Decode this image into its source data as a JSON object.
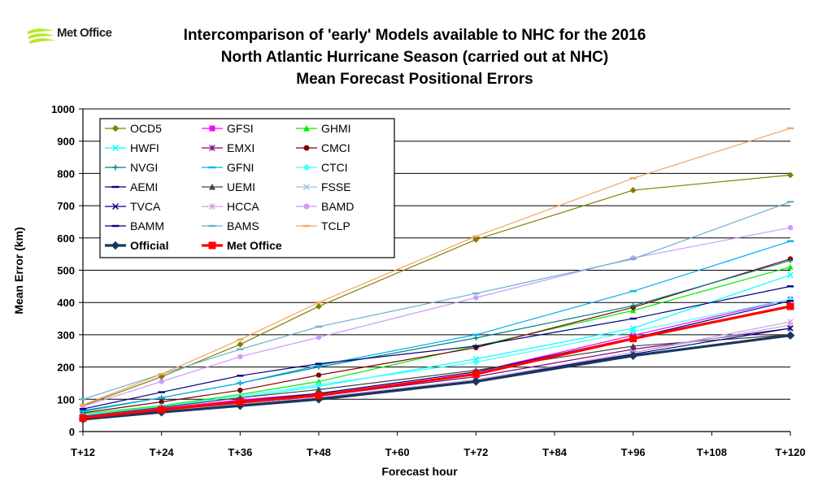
{
  "logo": {
    "text": "Met Office",
    "color": "#b8e830"
  },
  "title_lines": [
    "Intercomparison of 'early' Models available to NHC for the 2016",
    "North Atlantic Hurricane Season (carried out at NHC)",
    "Mean Forecast Positional Errors"
  ],
  "chart_data": {
    "type": "line",
    "title": "Intercomparison of 'early' Models available to NHC for the 2016 North Atlantic Hurricane Season (carried out at NHC) Mean Forecast Positional Errors",
    "xlabel": "Forecast hour",
    "ylabel": "Mean Error (km)",
    "x_ticks": [
      "T+12",
      "T+24",
      "T+36",
      "T+48",
      "T+60",
      "T+72",
      "T+84",
      "T+96",
      "T+108",
      "T+120"
    ],
    "x_points": [
      "T+12",
      "T+24",
      "T+36",
      "T+48",
      "T+72",
      "T+96",
      "T+120"
    ],
    "ylim": [
      0,
      1000
    ],
    "y_ticks": [
      0,
      100,
      200,
      300,
      400,
      500,
      600,
      700,
      800,
      900,
      1000
    ],
    "grid": "horizontal",
    "legend_position": "top-left",
    "series": [
      {
        "name": "OCD5",
        "color": "#808000",
        "marker": "diamond",
        "values": [
          80,
          170,
          270,
          388,
          595,
          748,
          795
        ]
      },
      {
        "name": "GFSI",
        "color": "#ff00ff",
        "marker": "square",
        "values": [
          45,
          72,
          98,
          118,
          185,
          298,
          410
        ]
      },
      {
        "name": "GHMI",
        "color": "#00ee00",
        "marker": "triangle",
        "values": [
          55,
          80,
          115,
          155,
          265,
          375,
          510
        ]
      },
      {
        "name": "HWFI",
        "color": "#00ffff",
        "marker": "x",
        "values": [
          50,
          75,
          105,
          140,
          225,
          320,
          485
        ]
      },
      {
        "name": "EMXI",
        "color": "#800080",
        "marker": "asterisk",
        "values": [
          40,
          65,
          88,
          110,
          170,
          255,
          320
        ]
      },
      {
        "name": "CMCI",
        "color": "#800000",
        "marker": "circle",
        "values": [
          58,
          92,
          128,
          175,
          260,
          385,
          535
        ]
      },
      {
        "name": "NVGI",
        "color": "#008080",
        "marker": "plus",
        "values": [
          65,
          105,
          150,
          200,
          290,
          390,
          530
        ]
      },
      {
        "name": "GFNI",
        "color": "#00b0f0",
        "marker": "dash",
        "values": [
          62,
          105,
          150,
          205,
          300,
          435,
          590
        ]
      },
      {
        "name": "CTCI",
        "color": "#40ffff",
        "marker": "diamond",
        "values": [
          50,
          78,
          110,
          145,
          215,
          310,
          410
        ]
      },
      {
        "name": "AEMI",
        "color": "#000080",
        "marker": "dash",
        "values": [
          42,
          68,
          95,
          118,
          185,
          290,
          405
        ]
      },
      {
        "name": "UEMI",
        "color": "#404040",
        "marker": "triangle",
        "values": [
          48,
          75,
          105,
          130,
          190,
          265,
          300
        ]
      },
      {
        "name": "FSSE",
        "color": "#a0c0e0",
        "marker": "x",
        "values": [
          38,
          62,
          85,
          105,
          160,
          245,
          330
        ]
      },
      {
        "name": "TVCA",
        "color": "#000080",
        "marker": "x",
        "values": [
          40,
          63,
          85,
          105,
          160,
          240,
          320
        ]
      },
      {
        "name": "HCCA",
        "color": "#d8a0d8",
        "marker": "asterisk",
        "values": [
          40,
          64,
          85,
          106,
          160,
          245,
          340
        ]
      },
      {
        "name": "BAMD",
        "color": "#cc99ff",
        "marker": "circle",
        "values": [
          78,
          155,
          232,
          292,
          415,
          538,
          632
        ]
      },
      {
        "name": "BAMM",
        "color": "#000080",
        "marker": "dash",
        "values": [
          70,
          122,
          173,
          210,
          265,
          350,
          450
        ]
      },
      {
        "name": "BAMS",
        "color": "#66b2cc",
        "marker": "dash",
        "values": [
          100,
          178,
          255,
          325,
          428,
          535,
          712
        ]
      },
      {
        "name": "TCLP",
        "color": "#f4a460",
        "marker": "dash",
        "values": [
          82,
          178,
          285,
          400,
          605,
          785,
          940
        ]
      },
      {
        "name": "Official",
        "color": "#17375e",
        "marker": "diamond",
        "values": [
          38,
          60,
          80,
          100,
          155,
          235,
          298
        ]
      },
      {
        "name": "Met Office",
        "color": "#ff0000",
        "marker": "square",
        "values": [
          42,
          68,
          92,
          112,
          178,
          288,
          388
        ]
      }
    ]
  }
}
